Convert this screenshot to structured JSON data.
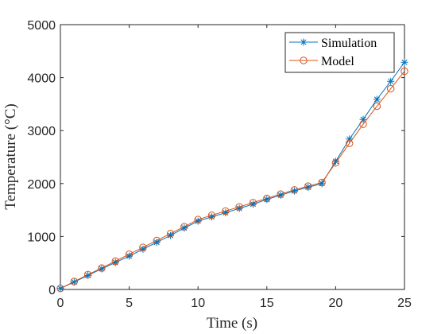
{
  "chart_data": {
    "type": "line",
    "title": "",
    "xlabel": "Time (s)",
    "ylabel": "Temperature (°C)",
    "xlim": [
      0,
      25
    ],
    "ylim": [
      0,
      5000
    ],
    "xticks": [
      "0",
      "5",
      "10",
      "15",
      "20",
      "25"
    ],
    "yticks": [
      "0",
      "1000",
      "2000",
      "3000",
      "4000",
      "5000"
    ],
    "grid": false,
    "legend_position": "top-right",
    "x": [
      0,
      1,
      2,
      3,
      4,
      5,
      6,
      7,
      8,
      9,
      10,
      11,
      12,
      13,
      14,
      15,
      16,
      17,
      18,
      19,
      20,
      21,
      22,
      23,
      24,
      25
    ],
    "series": [
      {
        "name": "Simulation",
        "marker": "asterisk",
        "color": "#0072BD",
        "values": [
          20,
          140,
          265,
          390,
          510,
          630,
          760,
          890,
          1020,
          1160,
          1290,
          1370,
          1450,
          1530,
          1610,
          1700,
          1780,
          1860,
          1930,
          2000,
          2420,
          2840,
          3210,
          3590,
          3930,
          4290
        ]
      },
      {
        "name": "Model",
        "marker": "circle",
        "color": "#D95319",
        "values": [
          20,
          150,
          280,
          405,
          535,
          665,
          795,
          925,
          1055,
          1185,
          1320,
          1400,
          1480,
          1560,
          1640,
          1720,
          1800,
          1880,
          1950,
          2020,
          2390,
          2760,
          3120,
          3460,
          3790,
          4120
        ]
      }
    ]
  }
}
